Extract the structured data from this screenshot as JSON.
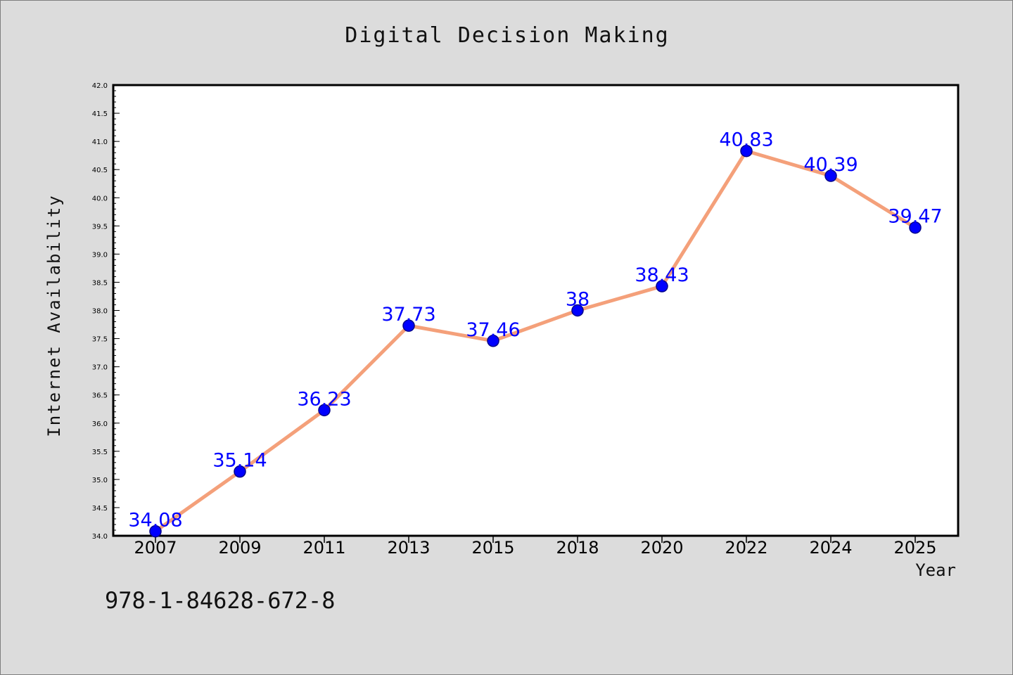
{
  "chart_data": {
    "type": "line",
    "title": "Digital Decision Making",
    "xlabel": "Year",
    "ylabel": "Internet Availability",
    "categories": [
      "2007",
      "2009",
      "2011",
      "2013",
      "2015",
      "2018",
      "2020",
      "2022",
      "2024",
      "2025"
    ],
    "series": [
      {
        "values": [
          34.08,
          35.14,
          36.23,
          37.73,
          37.46,
          38,
          38.43,
          40.83,
          40.39,
          39.47
        ],
        "data_labels": [
          "34.08",
          "35.14",
          "36.23",
          "37.73",
          "37.46",
          "38",
          "38.43",
          "40.83",
          "40.39",
          "39.47"
        ]
      }
    ],
    "ylim": [
      34.0,
      42.0
    ],
    "yticks": [
      "34.0",
      "34.5",
      "35.0",
      "35.5",
      "36.0",
      "36.5",
      "37.0",
      "37.5",
      "38.0",
      "38.5",
      "39.0",
      "39.5",
      "40.0",
      "40.5",
      "41.0",
      "41.5",
      "42.0"
    ],
    "grid": false,
    "legend": "none",
    "colors": {
      "line": "#f4a07a",
      "marker": "#0000ff",
      "marker_edge": "#00008b",
      "data_label": "#0000ff",
      "plot_background": "#ffffff",
      "page_background": "#dcdcdc"
    }
  },
  "footer": {
    "code": "978-1-84628-672-8"
  }
}
